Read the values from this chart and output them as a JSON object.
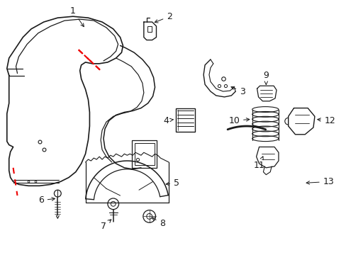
{
  "background_color": "#ffffff",
  "line_color": "#1a1a1a",
  "red_dash_color": "#ee0000",
  "label_color": "#1a1a1a",
  "figsize": [
    4.89,
    3.6
  ],
  "dpi": 100
}
